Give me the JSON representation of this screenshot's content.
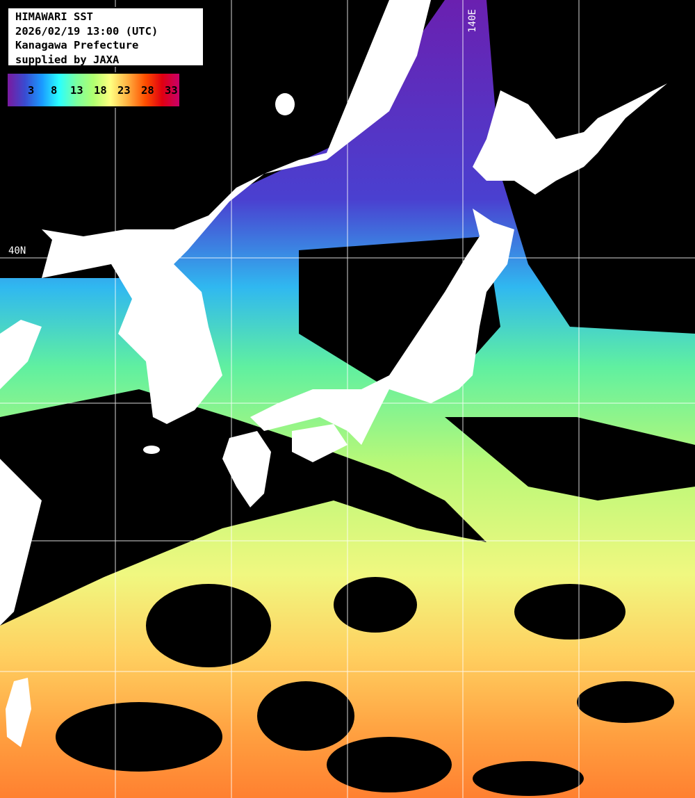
{
  "info": {
    "title": "HIMAWARI SST",
    "datetime": "2026/02/19 13:00 (UTC)",
    "region": "Kanagawa Prefecture",
    "credit": "supplied by JAXA"
  },
  "legend": {
    "ticks": [
      "3",
      "8",
      "13",
      "18",
      "23",
      "28",
      "33"
    ],
    "colors": [
      "#7a1aa0",
      "#3a4ad0",
      "#1a9aff",
      "#2affff",
      "#7affa0",
      "#b0ff70",
      "#ffff80",
      "#ffb040",
      "#ff5000",
      "#e00010",
      "#c8006a"
    ]
  },
  "grid": {
    "lat_label": "40N",
    "lon_label": "140E"
  },
  "colors": {
    "land": "#ffffff",
    "no_data": "#000000",
    "grid": "#ffffff"
  }
}
